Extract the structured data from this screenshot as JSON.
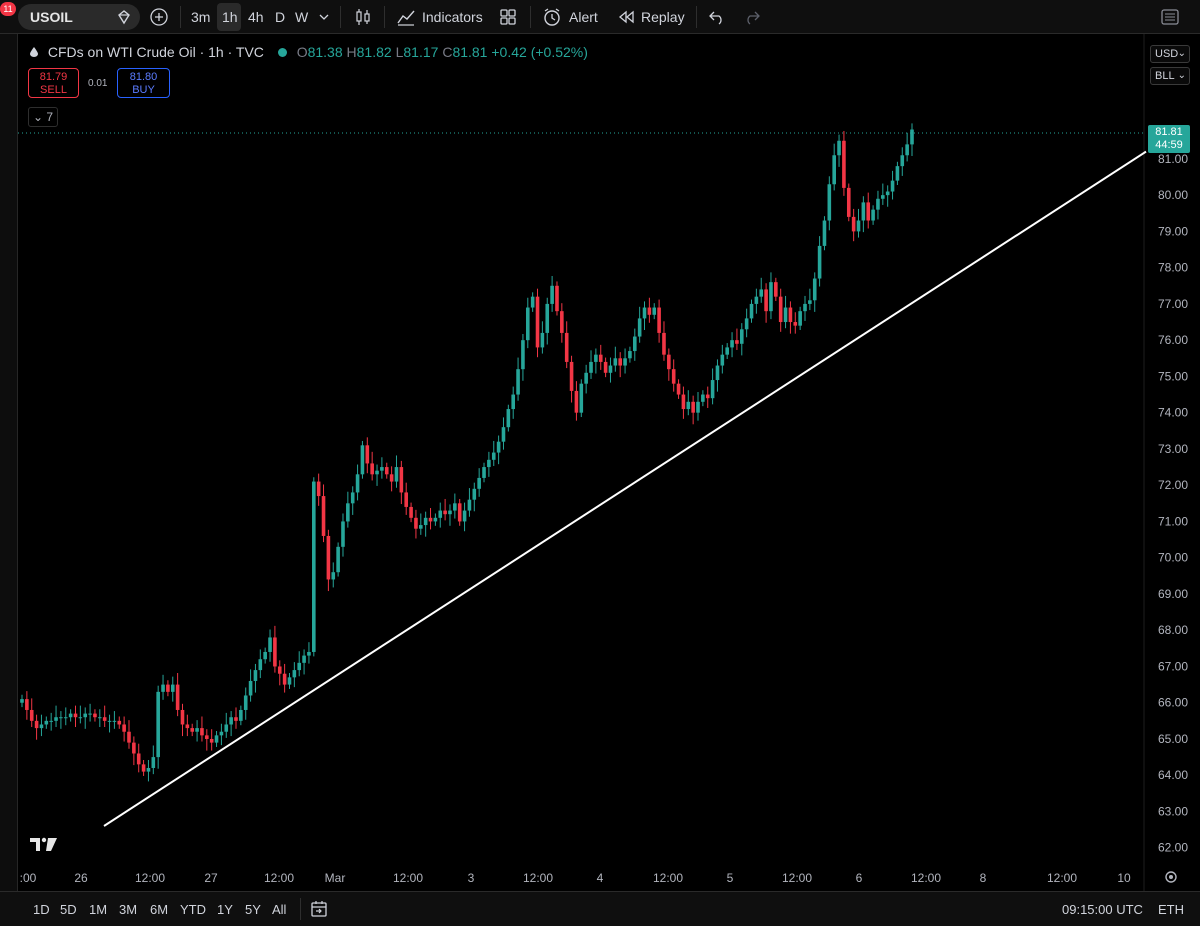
{
  "toolbar": {
    "symbol": "USOIL",
    "timeframes": [
      "3m",
      "1h",
      "4h",
      "D",
      "W"
    ],
    "active_timeframe": "1h",
    "indicators_label": "Indicators",
    "alert_label": "Alert",
    "replay_label": "Replay",
    "notification_count": "11"
  },
  "legend": {
    "title": "CFDs on WTI Crude Oil · 1h · TVC",
    "o_label": "O",
    "o_value": "81.38",
    "h_label": "H",
    "h_value": "81.82",
    "l_label": "L",
    "l_value": "81.17",
    "c_label": "C",
    "c_value": "81.81",
    "change": "+0.42 (+0.52%)"
  },
  "trade": {
    "sell_price": "81.79",
    "sell_label": "SELL",
    "spread": "0.01",
    "buy_price": "81.80",
    "buy_label": "BUY",
    "collapsed_count": "7"
  },
  "price_axis": {
    "currency": "USD",
    "unit": "BLL",
    "last_price": "81.81",
    "countdown": "44:59"
  },
  "bottom": {
    "ranges": [
      "1D",
      "5D",
      "1M",
      "3M",
      "6M",
      "YTD",
      "1Y",
      "5Y",
      "All"
    ],
    "clock": "09:15:00 UTC",
    "session": "ETH"
  },
  "colors": {
    "up": "#26a69a",
    "down": "#f23645",
    "background": "#000000",
    "trendline": "#ffffff",
    "last_price_tag": "#26a69a"
  },
  "chart_data": {
    "type": "candlestick",
    "ylim": [
      61.8,
      82.9
    ],
    "y_ticks": [
      "62.00",
      "63.00",
      "64.00",
      "65.00",
      "66.00",
      "67.00",
      "68.00",
      "69.00",
      "70.00",
      "71.00",
      "72.00",
      "73.00",
      "74.00",
      "75.00",
      "76.00",
      "77.00",
      "78.00",
      "79.00",
      "80.00",
      "81.00"
    ],
    "x_ticks": [
      ":00",
      "26",
      "12:00",
      "27",
      "12:00",
      "Mar",
      "12:00",
      "3",
      "12:00",
      "4",
      "12:00",
      "5",
      "12:00",
      "6",
      "12:00",
      "8",
      "12:00",
      "10"
    ],
    "closes": [
      66.1,
      65.8,
      65.5,
      65.3,
      65.4,
      65.5,
      65.5,
      65.6,
      65.6,
      65.6,
      65.7,
      65.6,
      65.6,
      65.7,
      65.7,
      65.6,
      65.6,
      65.5,
      65.5,
      65.5,
      65.4,
      65.2,
      64.9,
      64.6,
      64.3,
      64.1,
      64.2,
      64.5,
      66.3,
      66.5,
      66.3,
      66.5,
      65.8,
      65.4,
      65.3,
      65.2,
      65.3,
      65.1,
      65.0,
      64.9,
      65.1,
      65.2,
      65.4,
      65.6,
      65.5,
      65.8,
      66.2,
      66.6,
      66.9,
      67.2,
      67.4,
      67.8,
      67.0,
      66.8,
      66.5,
      66.7,
      66.9,
      67.1,
      67.3,
      67.4,
      72.1,
      71.7,
      70.6,
      69.4,
      69.6,
      70.3,
      71.0,
      71.5,
      71.8,
      72.3,
      73.1,
      72.6,
      72.3,
      72.4,
      72.5,
      72.3,
      72.1,
      72.5,
      71.8,
      71.4,
      71.1,
      70.8,
      70.9,
      71.1,
      71.0,
      71.1,
      71.3,
      71.2,
      71.3,
      71.5,
      71.0,
      71.3,
      71.6,
      71.9,
      72.2,
      72.5,
      72.7,
      72.9,
      73.2,
      73.6,
      74.1,
      74.5,
      75.2,
      76.0,
      76.9,
      77.2,
      75.8,
      76.2,
      77.0,
      77.5,
      76.8,
      76.2,
      75.4,
      74.6,
      74.0,
      74.8,
      75.1,
      75.4,
      75.6,
      75.4,
      75.1,
      75.3,
      75.5,
      75.3,
      75.5,
      75.7,
      76.1,
      76.6,
      76.9,
      76.7,
      76.9,
      76.2,
      75.6,
      75.2,
      74.8,
      74.5,
      74.1,
      74.3,
      74.0,
      74.3,
      74.5,
      74.4,
      74.9,
      75.3,
      75.6,
      75.8,
      76.0,
      75.9,
      76.3,
      76.6,
      77.0,
      77.2,
      77.4,
      76.8,
      77.6,
      77.2,
      76.5,
      76.9,
      76.5,
      76.4,
      76.8,
      77.0,
      77.1,
      77.7,
      78.6,
      79.3,
      80.3,
      81.1,
      81.5,
      80.2,
      79.4,
      79.0,
      79.3,
      79.8,
      79.3,
      79.6,
      79.9,
      80.0,
      80.1,
      80.4,
      80.8,
      81.1,
      81.4,
      81.81
    ],
    "trendline": {
      "from": {
        "bar": 12,
        "price": 62.6
      },
      "to": {
        "bar": 173,
        "price": 81.2
      }
    }
  }
}
